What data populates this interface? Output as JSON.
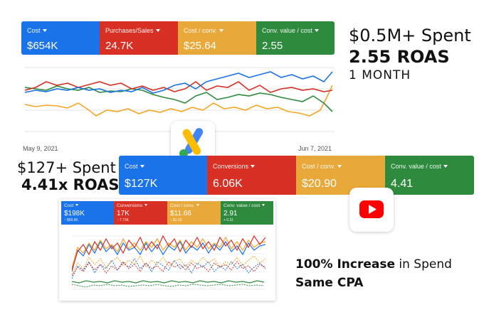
{
  "top_dashboard": {
    "metrics": [
      {
        "label": "Cost",
        "value": "$654K",
        "color": "#1a73e8"
      },
      {
        "label": "Purchases/Sales",
        "value": "24.7K",
        "color": "#d93025"
      },
      {
        "label": "Cost / conv.",
        "value": "$25.64",
        "color": "#f5a623"
      },
      {
        "label": "Conv. value / cost",
        "value": "2.55",
        "color": "#2e8b3e"
      }
    ],
    "date_start": "May 9, 2021",
    "date_end": "Jun 7, 2021"
  },
  "top_callout": {
    "spent": "$0.5M+ Spent",
    "roas": "2.55 ROAS",
    "period": "1 MONTH"
  },
  "middle_dashboard": {
    "metrics": [
      {
        "label": "Cost",
        "value": "$127K",
        "color": "#1a73e8"
      },
      {
        "label": "Conversions",
        "value": "6.06K",
        "color": "#d93025"
      },
      {
        "label": "Cost / conv.",
        "value": "$20.90",
        "color": "#f5a623"
      },
      {
        "label": "Conv. value / cost",
        "value": "4.41",
        "color": "#2e8b3e"
      }
    ]
  },
  "middle_callout": {
    "spent": "$127+ Spent",
    "roas": "4.41x ROAS"
  },
  "bottom_dashboard": {
    "metrics": [
      {
        "label": "Cost",
        "value": "$198K",
        "sub": "↑ $99.6K",
        "color": "#1a73e8"
      },
      {
        "label": "Conversions",
        "value": "17K",
        "sub": "↑ 7.73K",
        "color": "#d93025"
      },
      {
        "label": "Cost / conv.",
        "value": "$11.66",
        "sub": "↓ $1.03",
        "color": "#f5a623"
      },
      {
        "label": "Conv. value / cost",
        "value": "2.91",
        "sub": "+ 0.31",
        "color": "#2e8b3e"
      }
    ]
  },
  "bottom_callout": {
    "line1_bold": "100% Increase",
    "line1_rest": " in Spend",
    "line2": "Same CPA"
  },
  "icons": {
    "google_ads": "google-ads-logo",
    "youtube": "youtube-logo"
  },
  "colors": {
    "blue": "#1a73e8",
    "red": "#d93025",
    "yellow": "#f5a623",
    "green": "#2e8b3e"
  }
}
